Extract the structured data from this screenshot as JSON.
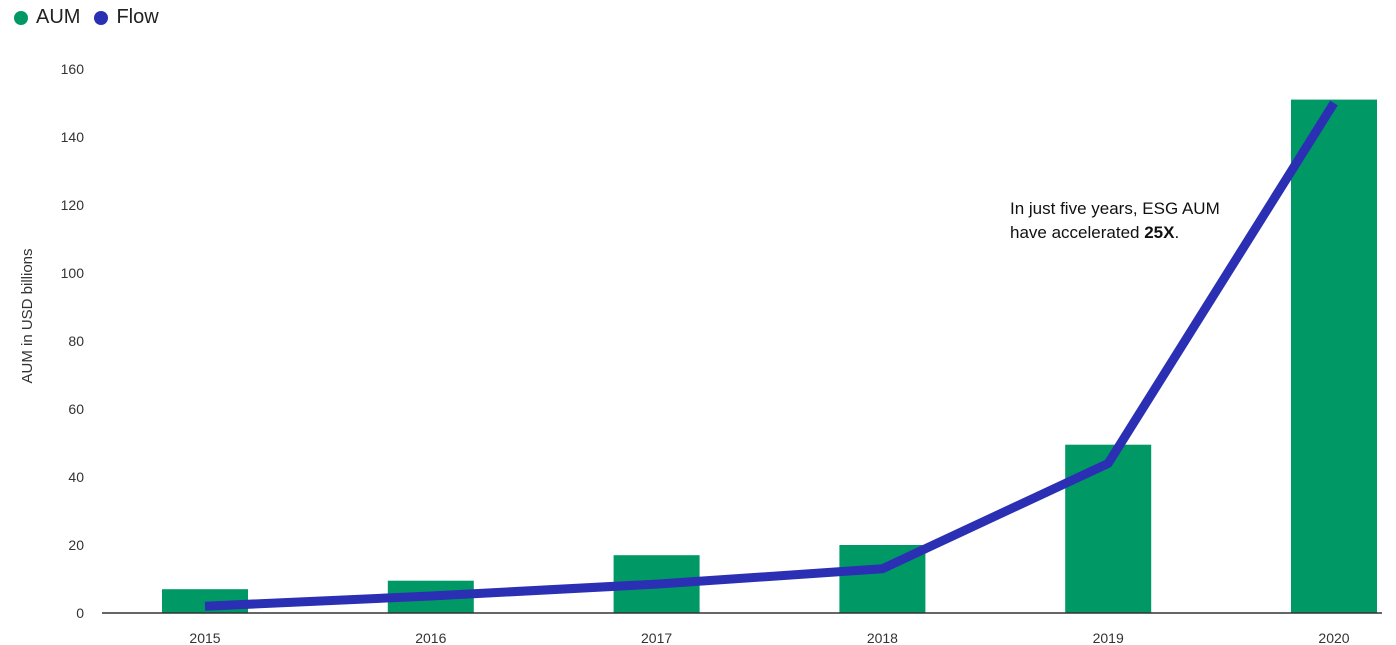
{
  "chart_data": {
    "type": "bar",
    "categories": [
      "2015",
      "2016",
      "2017",
      "2018",
      "2019",
      "2020"
    ],
    "series": [
      {
        "name": "AUM",
        "type": "bar",
        "color": "#009966",
        "values": [
          7,
          9.5,
          17,
          20,
          49.5,
          151
        ]
      },
      {
        "name": "Flow",
        "type": "line",
        "color": "#2b2fb3",
        "values": [
          2,
          5,
          8.5,
          13,
          44,
          150
        ]
      }
    ],
    "ylabel": "AUM in USD billions",
    "ylim": [
      0,
      160
    ],
    "yticks": [
      0,
      20,
      40,
      60,
      80,
      100,
      120,
      140,
      160
    ],
    "grid": false,
    "legend": "top-left",
    "annotation": {
      "line1": "In just five years, ESG AUM",
      "line2_prefix": "have accelerated ",
      "line2_bold": "25X",
      "line2_suffix": "."
    }
  }
}
